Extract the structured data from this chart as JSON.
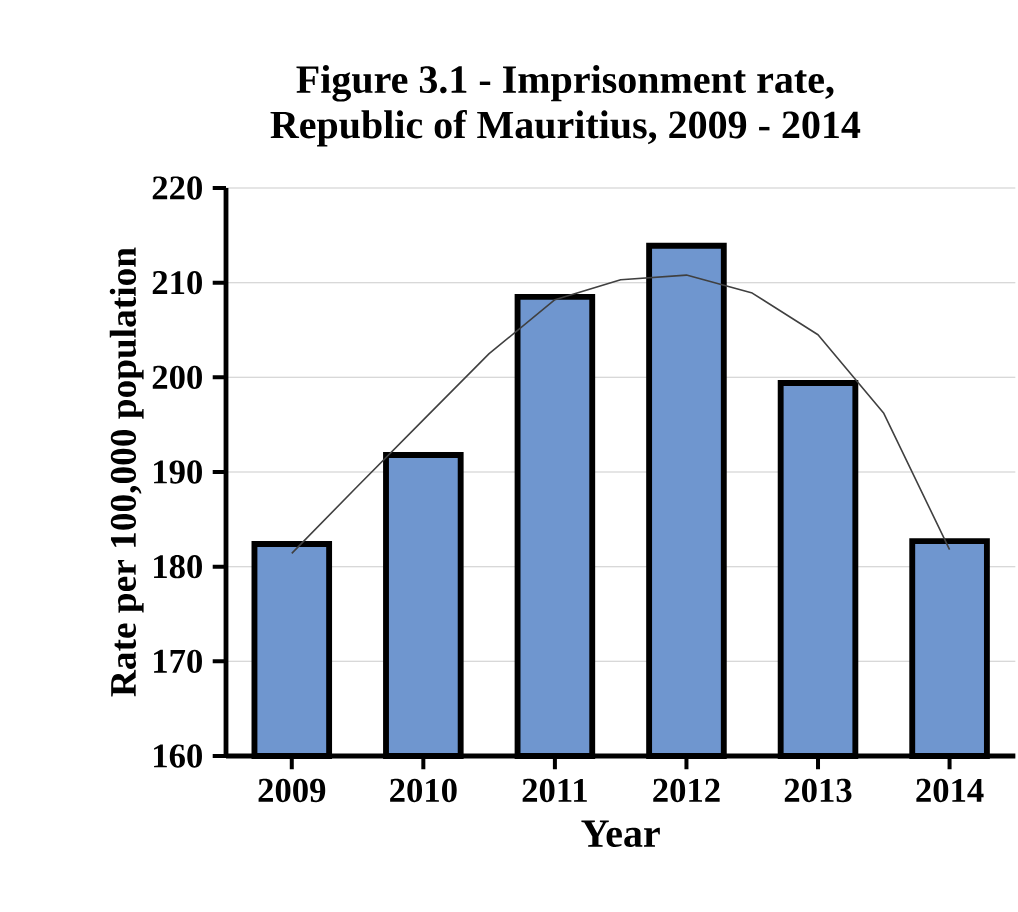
{
  "chart_data": {
    "type": "bar",
    "title": "Figure 3.1 - Imprisonment  rate,\nRepublic of Mauritius,  2009 - 2014",
    "xlabel": "Year",
    "ylabel": "Rate per 100,000 population",
    "x": [
      2009,
      2010,
      2011,
      2012,
      2013,
      2014
    ],
    "series": [
      {
        "color": "#6f96cf",
        "values": [
          182.4,
          191.8,
          208.5,
          213.9,
          199.4,
          182.7
        ]
      },
      {
        "type": "line",
        "color": "#404040",
        "x": [
          2009,
          2009.5,
          2010,
          2010.5,
          2011,
          2011.5,
          2012,
          2012.5,
          2013,
          2013.5,
          2014
        ],
        "values": [
          181.4,
          188.5,
          195.5,
          202.5,
          208.2,
          210.3,
          210.8,
          208.9,
          204.5,
          196.2,
          181.8
        ]
      }
    ],
    "xlim": [
      2008.5,
      2014.5
    ],
    "xticks": [
      2009,
      2010,
      2011,
      2012,
      2013,
      2014
    ],
    "ylim": [
      160,
      220
    ],
    "yticks": [
      160,
      170,
      180,
      190,
      200,
      210,
      220
    ],
    "grid": "y",
    "marker": "none"
  }
}
